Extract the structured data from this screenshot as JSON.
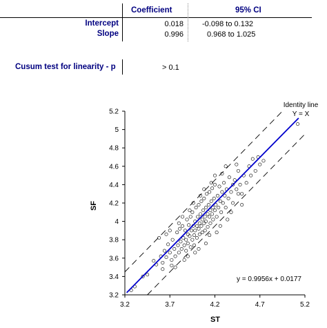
{
  "table": {
    "headers": [
      "Coefficient",
      "95% CI"
    ],
    "rows": [
      {
        "label": "Intercept",
        "coefficient": "0.018",
        "ci_low": "-0.098",
        "ci_high": "0.132"
      },
      {
        "label": "Slope",
        "coefficient": "0.996",
        "ci_low": "0.968",
        "ci_high": "1.025"
      }
    ],
    "ci_sep": "to"
  },
  "cusum": {
    "label": "Cusum test for linearity - p",
    "value": "> 0.1"
  },
  "colors": {
    "header_text": "#000080",
    "fit_line": "#0000cc",
    "points": "#000000"
  },
  "chart_data": {
    "type": "scatter",
    "xlabel": "ST",
    "ylabel": "SF",
    "xlim": [
      3.2,
      5.2
    ],
    "ylim": [
      3.2,
      5.2
    ],
    "xticks": [
      "3.2",
      "3.7",
      "4.2",
      "4.7",
      "5.2"
    ],
    "yticks": [
      "3.2",
      "3.4",
      "3.6",
      "3.8",
      "4",
      "4.2",
      "4.4",
      "4.6",
      "4.8",
      "5",
      "5.2"
    ],
    "fit": {
      "slope": 0.9956,
      "intercept": 0.0177,
      "label": "y = 0.9956x + 0.0177"
    },
    "identity_label": [
      "Identity line",
      "Y = X"
    ],
    "limit_offset": 0.25,
    "points": [
      [
        3.27,
        3.25
      ],
      [
        3.31,
        3.29
      ],
      [
        3.4,
        3.4
      ],
      [
        3.45,
        3.42
      ],
      [
        3.52,
        3.57
      ],
      [
        3.55,
        3.53
      ],
      [
        3.6,
        3.62
      ],
      [
        3.62,
        3.55
      ],
      [
        3.64,
        3.68
      ],
      [
        3.66,
        3.61
      ],
      [
        3.68,
        3.75
      ],
      [
        3.7,
        3.66
      ],
      [
        3.72,
        3.58
      ],
      [
        3.73,
        3.8
      ],
      [
        3.75,
        3.7
      ],
      [
        3.76,
        3.62
      ],
      [
        3.78,
        3.88
      ],
      [
        3.79,
        3.74
      ],
      [
        3.8,
        3.66
      ],
      [
        3.81,
        3.92
      ],
      [
        3.82,
        3.78
      ],
      [
        3.83,
        3.7
      ],
      [
        3.84,
        3.95
      ],
      [
        3.85,
        3.82
      ],
      [
        3.86,
        3.74
      ],
      [
        3.87,
        3.9
      ],
      [
        3.88,
        3.8
      ],
      [
        3.88,
        3.68
      ],
      [
        3.89,
        4.02
      ],
      [
        3.9,
        3.86
      ],
      [
        3.9,
        3.76
      ],
      [
        3.91,
        3.96
      ],
      [
        3.92,
        3.84
      ],
      [
        3.93,
        3.72
      ],
      [
        3.93,
        4.05
      ],
      [
        3.94,
        3.9
      ],
      [
        3.95,
        3.8
      ],
      [
        3.95,
        4.1
      ],
      [
        3.96,
        3.95
      ],
      [
        3.97,
        3.85
      ],
      [
        3.97,
        3.74
      ],
      [
        3.98,
        4.0
      ],
      [
        3.98,
        3.9
      ],
      [
        3.99,
        4.15
      ],
      [
        4.0,
        3.95
      ],
      [
        4.0,
        3.82
      ],
      [
        4.01,
        4.05
      ],
      [
        4.02,
        3.92
      ],
      [
        4.02,
        4.18
      ],
      [
        4.03,
        3.98
      ],
      [
        4.03,
        3.86
      ],
      [
        4.04,
        4.08
      ],
      [
        4.05,
        3.95
      ],
      [
        4.05,
        4.22
      ],
      [
        4.06,
        4.02
      ],
      [
        4.06,
        3.88
      ],
      [
        4.07,
        4.12
      ],
      [
        4.08,
        3.98
      ],
      [
        4.08,
        4.25
      ],
      [
        4.09,
        4.05
      ],
      [
        4.09,
        3.9
      ],
      [
        4.1,
        4.15
      ],
      [
        4.1,
        4.0
      ],
      [
        4.11,
        4.3
      ],
      [
        4.12,
        4.08
      ],
      [
        4.12,
        3.94
      ],
      [
        4.13,
        4.18
      ],
      [
        4.14,
        4.05
      ],
      [
        4.14,
        4.32
      ],
      [
        4.15,
        4.12
      ],
      [
        4.15,
        3.98
      ],
      [
        4.16,
        4.22
      ],
      [
        4.17,
        4.08
      ],
      [
        4.17,
        4.36
      ],
      [
        4.18,
        4.15
      ],
      [
        4.18,
        4.02
      ],
      [
        4.19,
        4.25
      ],
      [
        4.2,
        4.12
      ],
      [
        4.2,
        4.4
      ],
      [
        4.21,
        4.18
      ],
      [
        4.22,
        4.05
      ],
      [
        4.23,
        4.28
      ],
      [
        4.24,
        4.15
      ],
      [
        4.25,
        4.38
      ],
      [
        4.26,
        4.22
      ],
      [
        4.27,
        4.1
      ],
      [
        4.28,
        4.32
      ],
      [
        4.29,
        4.2
      ],
      [
        4.3,
        4.42
      ],
      [
        4.31,
        4.28
      ],
      [
        4.32,
        4.15
      ],
      [
        4.33,
        4.35
      ],
      [
        4.35,
        4.25
      ],
      [
        4.36,
        4.48
      ],
      [
        4.38,
        4.32
      ],
      [
        4.4,
        4.2
      ],
      [
        4.42,
        4.45
      ],
      [
        4.44,
        4.35
      ],
      [
        4.46,
        4.55
      ],
      [
        4.48,
        4.4
      ],
      [
        4.5,
        4.3
      ],
      [
        4.52,
        4.5
      ],
      [
        4.55,
        4.42
      ],
      [
        4.58,
        4.6
      ],
      [
        4.6,
        4.5
      ],
      [
        4.62,
        4.68
      ],
      [
        4.65,
        4.55
      ],
      [
        4.68,
        4.7
      ],
      [
        4.7,
        4.62
      ],
      [
        4.74,
        4.66
      ],
      [
        3.58,
        3.82
      ],
      [
        3.62,
        3.48
      ],
      [
        3.7,
        3.9
      ],
      [
        3.76,
        3.5
      ],
      [
        3.84,
        4.05
      ],
      [
        3.9,
        3.62
      ],
      [
        3.96,
        4.2
      ],
      [
        4.02,
        3.7
      ],
      [
        4.08,
        4.35
      ],
      [
        4.14,
        3.85
      ],
      [
        4.2,
        4.5
      ],
      [
        4.26,
        3.95
      ],
      [
        4.32,
        4.6
      ],
      [
        4.38,
        4.1
      ],
      [
        4.44,
        4.62
      ],
      [
        4.5,
        4.18
      ],
      [
        3.66,
        3.86
      ],
      [
        3.72,
        3.52
      ],
      [
        3.8,
        3.98
      ],
      [
        3.86,
        3.58
      ],
      [
        3.92,
        4.12
      ],
      [
        3.98,
        3.66
      ],
      [
        4.04,
        4.28
      ],
      [
        4.1,
        3.76
      ],
      [
        4.16,
        4.42
      ],
      [
        4.22,
        3.88
      ],
      [
        4.28,
        4.52
      ],
      [
        4.34,
        4.02
      ],
      [
        4.4,
        4.4
      ],
      [
        4.46,
        4.3
      ],
      [
        5.12,
        5.06
      ]
    ]
  }
}
